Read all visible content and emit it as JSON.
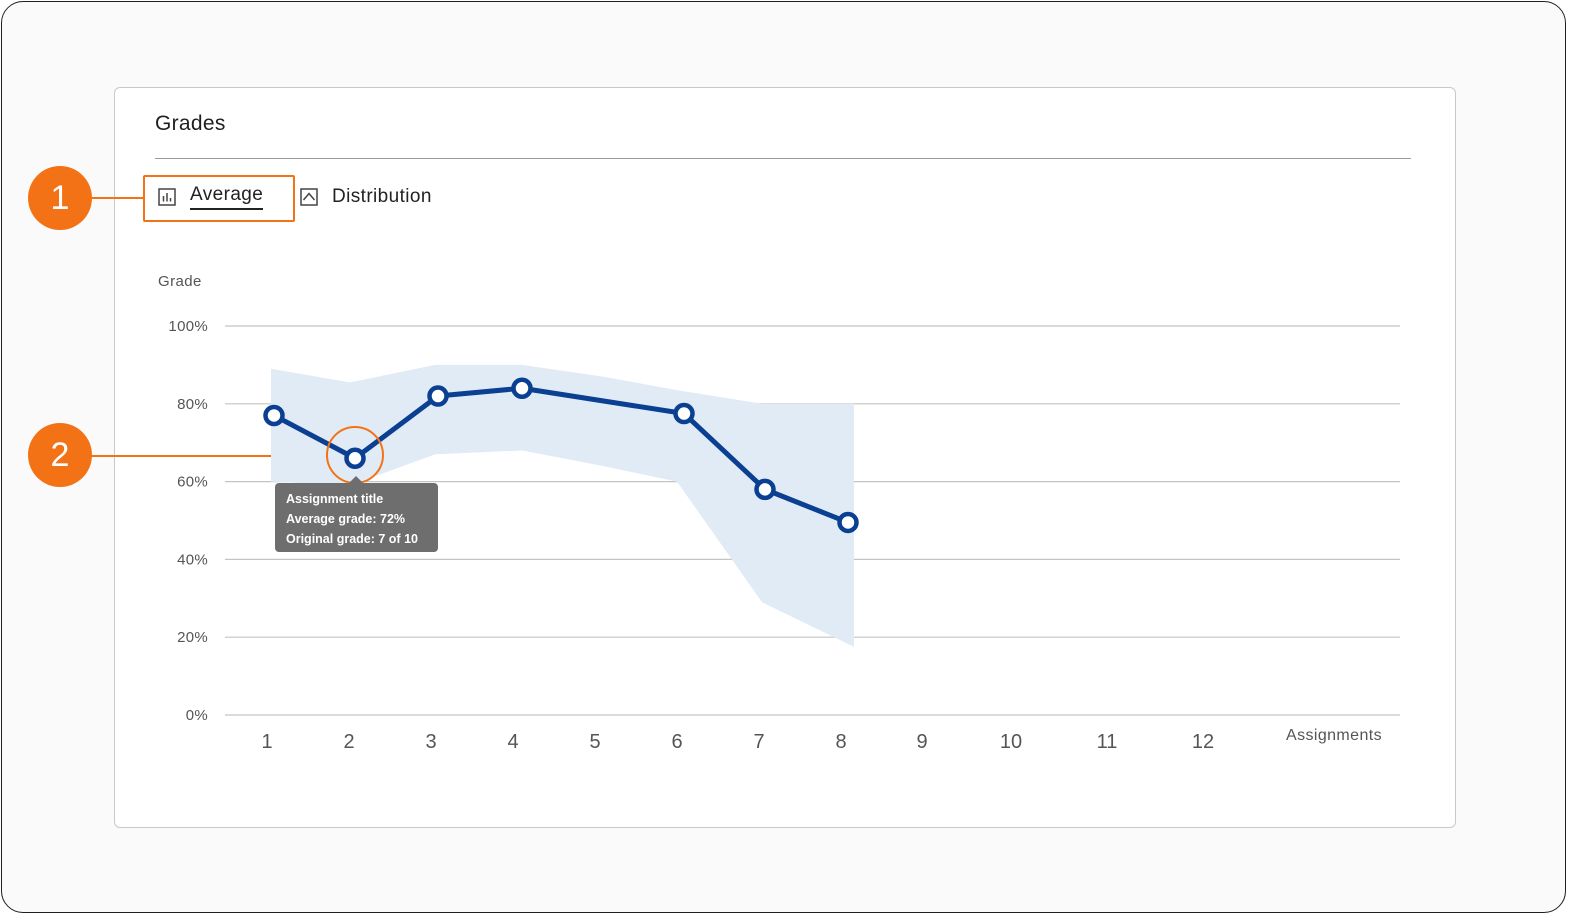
{
  "card": {
    "title": "Grades"
  },
  "tabs": [
    {
      "label": "Average",
      "icon": "bar-chart-icon",
      "selected": true
    },
    {
      "label": "Distribution",
      "icon": "area-chart-icon",
      "selected": false
    }
  ],
  "callouts": [
    "1",
    "2"
  ],
  "colors": {
    "accent": "#f47216",
    "series": "#0a3f91",
    "band": "#e1ebf6",
    "tooltip": "#6e6e6e"
  },
  "tooltip": {
    "title": "Assignment title",
    "average": "Average grade: 72%",
    "original": "Original grade: 7 of 10"
  },
  "chart_data": {
    "type": "line",
    "ylabel": "Grade",
    "xlabel": "Assignments",
    "ylim": [
      0,
      100
    ],
    "yticks": [
      0,
      20,
      40,
      60,
      80,
      100
    ],
    "ytick_labels": [
      "0%",
      "20%",
      "40%",
      "60%",
      "80%",
      "100%"
    ],
    "categories": [
      "1",
      "2",
      "3",
      "4",
      "5",
      "6",
      "7",
      "8",
      "9",
      "10",
      "11",
      "12"
    ],
    "series": [
      {
        "values": [
          77,
          66,
          82,
          84,
          null,
          77.5,
          58,
          49.5,
          null,
          null,
          null,
          null
        ]
      }
    ],
    "band": {
      "upper": [
        89,
        85.5,
        90,
        90,
        87,
        83.5,
        80,
        80
      ],
      "lower": [
        60,
        59,
        67,
        68,
        64,
        60,
        29,
        17.5
      ]
    },
    "grid": true,
    "highlighted_point": "2"
  }
}
